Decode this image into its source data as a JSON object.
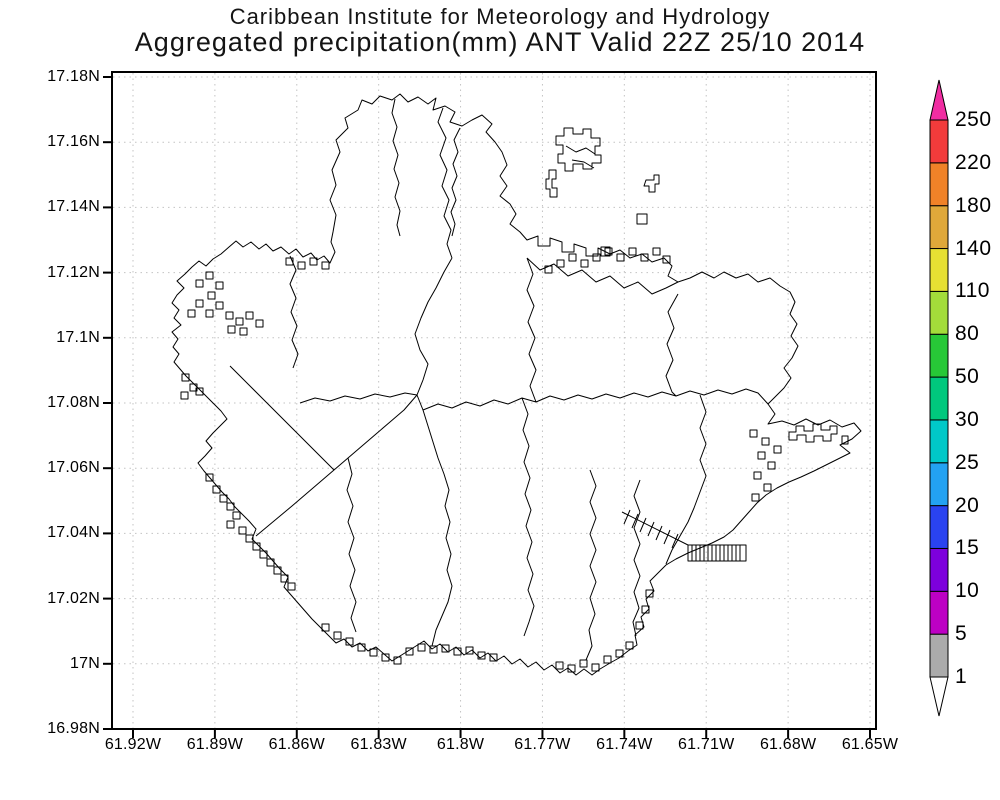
{
  "title": {
    "line1": "Caribbean Institute for Meteorology and Hydrology",
    "line2": "Aggregated precipitation(mm) ANT Valid 22Z 25/10 2014"
  },
  "map": {
    "region_code": "ANT",
    "y_axis_ticks": [
      "17.18N",
      "17.16N",
      "17.14N",
      "17.12N",
      "17.1N",
      "17.08N",
      "17.06N",
      "17.04N",
      "17.02N",
      "17N",
      "16.98N"
    ],
    "x_axis_ticks": [
      "61.92W",
      "61.89W",
      "61.86W",
      "61.83W",
      "61.8W",
      "61.77W",
      "61.74W",
      "61.71W",
      "61.68W",
      "61.65W"
    ],
    "gridline_color": "#c3c3c3",
    "coastline_color": "#000000"
  },
  "colorbar": {
    "levels": [
      "1",
      "5",
      "10",
      "15",
      "20",
      "25",
      "30",
      "50",
      "80",
      "110",
      "140",
      "180",
      "220",
      "250"
    ],
    "segment_colors": [
      "#ababab",
      "#bd00c4",
      "#7d00dd",
      "#2a43f0",
      "#23a2f2",
      "#00c8c8",
      "#00c87d",
      "#27c837",
      "#a3dc3a",
      "#e6e033",
      "#dfa83a",
      "#f08228",
      "#f23b3b"
    ],
    "over_color": "#f02da2",
    "under_color": "#ffffff"
  }
}
